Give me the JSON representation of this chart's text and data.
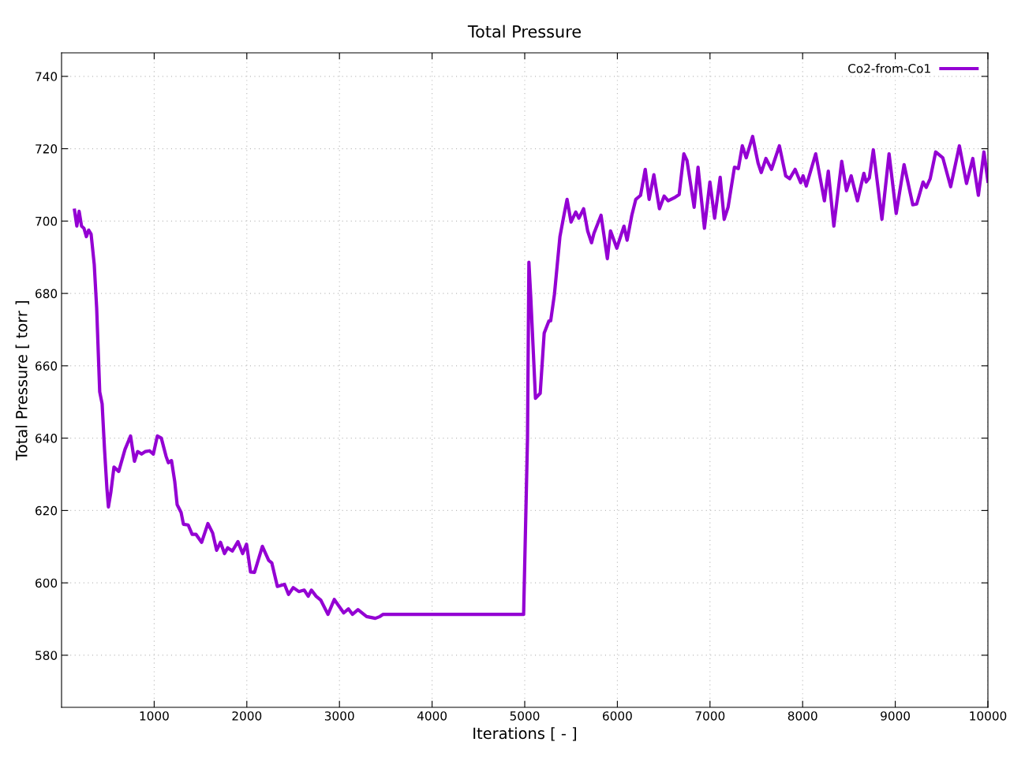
{
  "chart_data": {
    "type": "line",
    "title": "Total Pressure",
    "xlabel": "Iterations [ - ]",
    "ylabel": "Total Pressure [ torr ]",
    "xlim": [
      0,
      10000
    ],
    "ylim": [
      565.6,
      746.5
    ],
    "xticks": [
      1000,
      2000,
      3000,
      4000,
      5000,
      6000,
      7000,
      8000,
      9000,
      10000
    ],
    "yticks": [
      580,
      600,
      620,
      640,
      660,
      680,
      700,
      720,
      740
    ],
    "grid": true,
    "legend": "top right",
    "line_style": "solid",
    "marker": "none",
    "series": [
      {
        "name": "Co2-from-Co1",
        "color": "#9400d3",
        "x": [
          140,
          165,
          190,
          216,
          242,
          268,
          293,
          319,
          353,
          379,
          412,
          438,
          464,
          490,
          506,
          532,
          566,
          617,
          685,
          727,
          745,
          787,
          821,
          864,
          906,
          949,
          991,
          1034,
          1077,
          1128,
          1153,
          1187,
          1222,
          1248,
          1290,
          1316,
          1367,
          1410,
          1452,
          1512,
          1580,
          1631,
          1674,
          1716,
          1759,
          1793,
          1844,
          1904,
          1955,
          1997,
          2040,
          2083,
          2168,
          2236,
          2270,
          2330,
          2407,
          2450,
          2501,
          2561,
          2620,
          2663,
          2697,
          2748,
          2799,
          2876,
          2944,
          3046,
          3097,
          3140,
          3200,
          3293,
          3387,
          3437,
          3472,
          4988,
          5030,
          5045,
          5065,
          5116,
          5167,
          5210,
          5261,
          5280,
          5321,
          5380,
          5423,
          5457,
          5500,
          5551,
          5585,
          5636,
          5679,
          5721,
          5747,
          5824,
          5892,
          5926,
          5994,
          6071,
          6105,
          6156,
          6199,
          6250,
          6301,
          6343,
          6394,
          6454,
          6505,
          6548,
          6625,
          6667,
          6718,
          6752,
          6829,
          6871,
          6940,
          6999,
          7050,
          7110,
          7153,
          7195,
          7264,
          7306,
          7349,
          7391,
          7460,
          7519,
          7553,
          7604,
          7664,
          7749,
          7817,
          7860,
          7919,
          7979,
          8005,
          8039,
          8141,
          8235,
          8277,
          8337,
          8422,
          8473,
          8524,
          8592,
          8661,
          8686,
          8720,
          8763,
          8856,
          8933,
          9010,
          9095,
          9189,
          9231,
          9300,
          9334,
          9377,
          9436,
          9513,
          9598,
          9692,
          9769,
          9837,
          9897,
          9957,
          10000
        ],
        "values": [
          703,
          698.6,
          702.7,
          698.6,
          698,
          695.7,
          697.5,
          696.4,
          688,
          676,
          652.8,
          649.5,
          636.9,
          626,
          621,
          625,
          632,
          630.8,
          636.9,
          639.5,
          640.6,
          633.6,
          636.3,
          635.6,
          636.3,
          636.5,
          635.6,
          640.6,
          640,
          635,
          633.2,
          633.8,
          628,
          621.6,
          619.5,
          616.2,
          616,
          613.4,
          613.4,
          611.2,
          616.4,
          613.8,
          609,
          611.2,
          608.1,
          609.7,
          608.8,
          611.4,
          608.1,
          610.7,
          603,
          602.9,
          610.1,
          606.2,
          605.5,
          599,
          599.6,
          596.8,
          598.7,
          597.6,
          598,
          596.3,
          598,
          596.3,
          595.2,
          591.3,
          595.4,
          591.7,
          592.8,
          591.3,
          592.6,
          590.7,
          590.2,
          590.7,
          591.3,
          591.3,
          640,
          688.6,
          679,
          651,
          652.4,
          669,
          672.4,
          672.4,
          679.8,
          695.7,
          701.6,
          706,
          699.7,
          702.5,
          700.8,
          703.4,
          697.3,
          694,
          696.6,
          701.6,
          689.6,
          697.3,
          692.5,
          698.6,
          694.7,
          701.6,
          706,
          707.1,
          714.3,
          706,
          712.8,
          703.4,
          706.9,
          705.6,
          706.6,
          707.3,
          718.6,
          716.7,
          703.8,
          714.9,
          698,
          710.8,
          700.8,
          712.1,
          700.5,
          703.8,
          714.9,
          714.5,
          720.8,
          717.5,
          723.4,
          716,
          713.4,
          717.3,
          714.3,
          720.8,
          712.5,
          711.7,
          714.3,
          710.6,
          712.5,
          709.7,
          718.6,
          705.6,
          713.8,
          698.6,
          716.5,
          708.4,
          712.5,
          705.6,
          713.2,
          710.8,
          711.9,
          719.7,
          700.5,
          718.6,
          702.1,
          715.6,
          704.5,
          704.7,
          710.8,
          709.3,
          711.7,
          719.1,
          717.5,
          709.5,
          720.8,
          710.4,
          717.3,
          707.1,
          719.1,
          711
        ]
      }
    ]
  }
}
